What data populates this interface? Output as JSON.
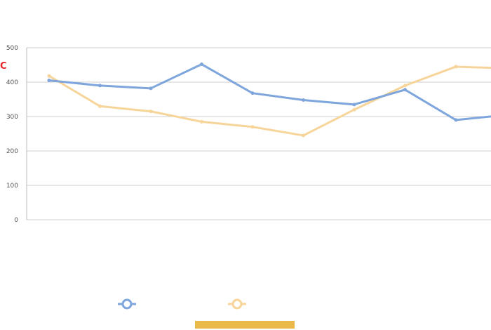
{
  "chart_data": {
    "type": "line",
    "title": "",
    "red_tag": "C",
    "categories": [
      "",
      "",
      "",
      "",
      "",
      "",
      "",
      "",
      "",
      ""
    ],
    "series": [
      {
        "name": "",
        "color": "#7ea6dc",
        "values": [
          405,
          390,
          382,
          452,
          368,
          348,
          335,
          378,
          290,
          305
        ]
      },
      {
        "name": "",
        "color": "#f7d59a",
        "values": [
          418,
          330,
          315,
          285,
          270,
          245,
          320,
          390,
          445,
          440
        ]
      }
    ],
    "point_labels": [
      "",
      "",
      "",
      "",
      ""
    ],
    "yticks": [
      "500",
      "400",
      "300",
      "200",
      "100",
      "0"
    ],
    "ylim": [
      0,
      500
    ],
    "grid": true,
    "legend": "bottom-center",
    "source": ""
  }
}
